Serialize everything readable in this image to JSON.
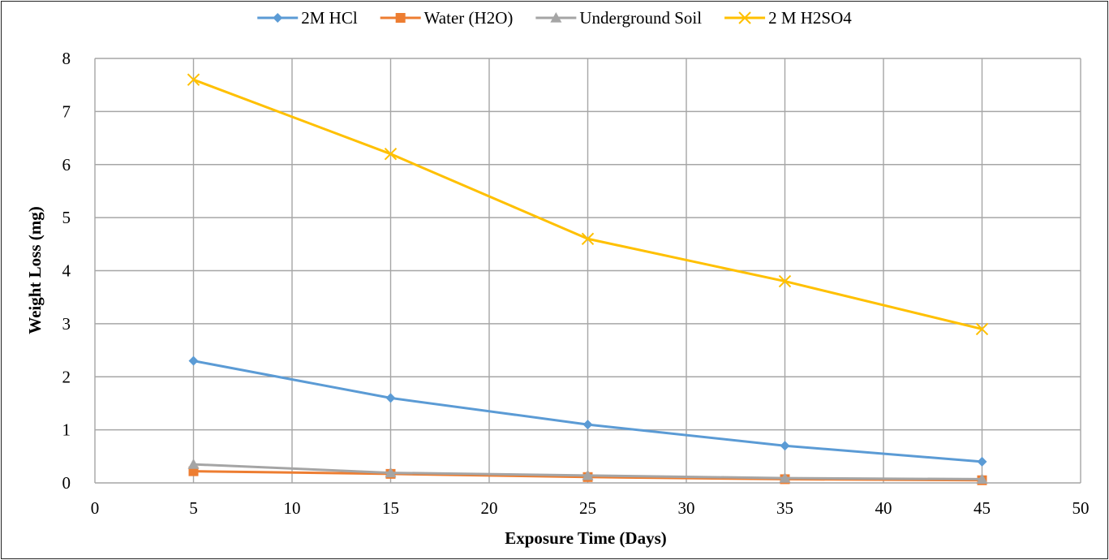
{
  "chart_data": {
    "type": "line",
    "title": "",
    "xlabel": "Exposure Time (Days)",
    "ylabel": "Weight Loss (mg)",
    "xlim": [
      0,
      50
    ],
    "ylim": [
      0,
      8
    ],
    "xticks": [
      0,
      5,
      10,
      15,
      20,
      25,
      30,
      35,
      40,
      45,
      50
    ],
    "yticks": [
      0,
      1,
      2,
      3,
      4,
      5,
      6,
      7,
      8
    ],
    "grid": true,
    "legend_position": "top",
    "x": [
      5,
      15,
      25,
      35,
      45
    ],
    "series": [
      {
        "name": "2M HCl",
        "values": [
          2.3,
          1.6,
          1.1,
          0.7,
          0.4
        ],
        "color": "#5B9BD5",
        "marker": "diamond"
      },
      {
        "name": "Water (H2O)",
        "values": [
          0.22,
          0.17,
          0.11,
          0.07,
          0.05
        ],
        "color": "#ED7D31",
        "marker": "square"
      },
      {
        "name": "Underground Soil",
        "values": [
          0.35,
          0.19,
          0.14,
          0.09,
          0.07
        ],
        "color": "#A5A5A5",
        "marker": "triangle"
      },
      {
        "name": "2 M H2SO4",
        "values": [
          7.6,
          6.2,
          4.6,
          3.8,
          2.9
        ],
        "color": "#FFC000",
        "marker": "x"
      }
    ]
  }
}
